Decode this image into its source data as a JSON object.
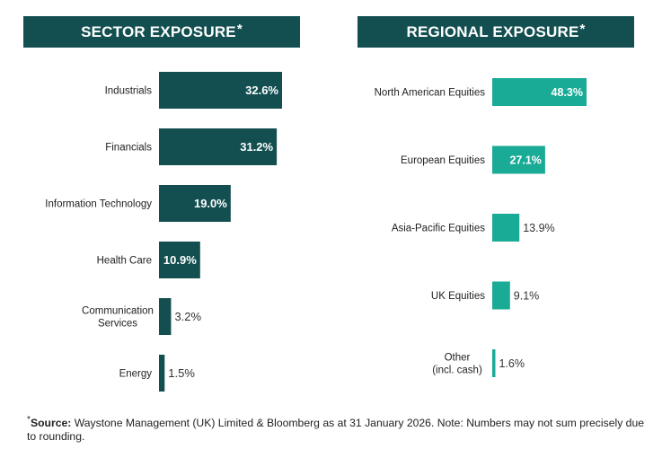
{
  "sector": {
    "title": "SECTOR EXPOSURE",
    "asterisk": "*"
  },
  "region": {
    "title": "REGIONAL EXPOSURE",
    "asterisk": "*"
  },
  "colors": {
    "header_bg": "#134f51",
    "sector_bar": "#134f51",
    "region_bar": "#1aab96",
    "label_inside": "#ffffff",
    "label_outside": "#333333"
  },
  "chart_data": [
    {
      "type": "bar",
      "orientation": "horizontal",
      "title": "SECTOR EXPOSURE*",
      "categories": [
        "Industrials",
        "Financials",
        "Information Technology",
        "Health Care",
        "Communication Services",
        "Energy"
      ],
      "category_lines": [
        [
          "Industrials"
        ],
        [
          "Financials"
        ],
        [
          "Information Technology"
        ],
        [
          "Health Care"
        ],
        [
          "Communication",
          "Services"
        ],
        [
          "Energy"
        ]
      ],
      "values": [
        32.6,
        31.2,
        19.0,
        10.9,
        3.2,
        1.5
      ],
      "labels": [
        "32.6%",
        "31.2%",
        "19.0%",
        "10.9%",
        "3.2%",
        "1.5%"
      ],
      "unit": "%",
      "xlim": [
        0,
        32.6
      ]
    },
    {
      "type": "bar",
      "orientation": "horizontal",
      "title": "REGIONAL EXPOSURE*",
      "categories": [
        "North American Equities",
        "European Equities",
        "Asia-Pacific Equities",
        "UK Equities",
        "Other (incl. cash)"
      ],
      "category_lines": [
        [
          "North American Equities"
        ],
        [
          "European Equities"
        ],
        [
          "Asia-Pacific Equities"
        ],
        [
          "UK Equities"
        ],
        [
          "Other",
          "(incl. cash)"
        ]
      ],
      "values": [
        48.3,
        27.1,
        13.9,
        9.1,
        1.6
      ],
      "labels": [
        "48.3%",
        "27.1%",
        "13.9%",
        "9.1%",
        "1.6%"
      ],
      "unit": "%",
      "xlim": [
        0,
        48.3
      ]
    }
  ],
  "footnote": {
    "asterisk": "*",
    "source_label": "Source:",
    "text": " Waystone Management (UK) Limited & Bloomberg as at 31 January 2026. Note: Numbers may not sum precisely due to rounding."
  }
}
